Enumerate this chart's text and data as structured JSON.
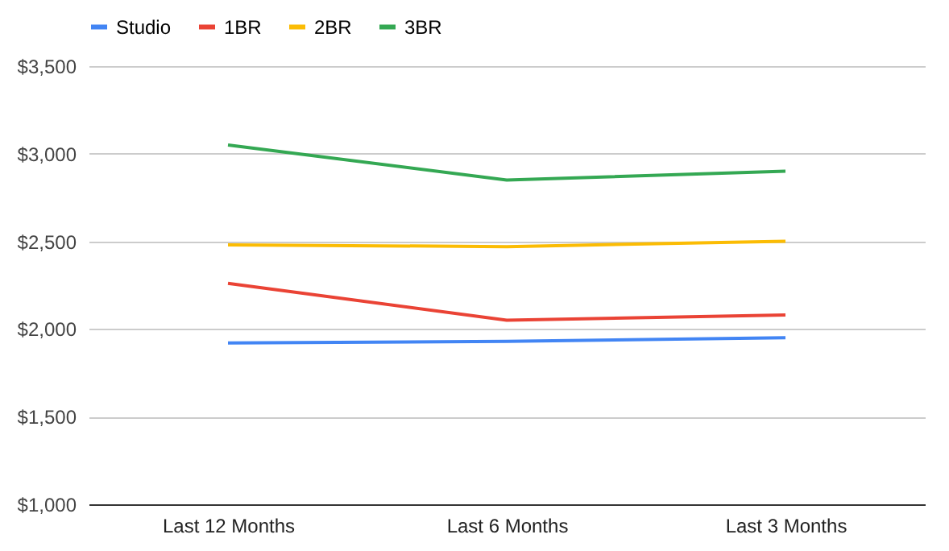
{
  "chart_data": {
    "type": "line",
    "categories": [
      "Last 12 Months",
      "Last 6 Months",
      "Last 3 Months"
    ],
    "series": [
      {
        "name": "Studio",
        "color": "#4285f4",
        "values": [
          1920,
          1930,
          1950
        ]
      },
      {
        "name": "1BR",
        "color": "#ea4335",
        "values": [
          2260,
          2050,
          2080
        ]
      },
      {
        "name": "2BR",
        "color": "#fbbc04",
        "values": [
          2480,
          2470,
          2500
        ]
      },
      {
        "name": "3BR",
        "color": "#34a853",
        "values": [
          3050,
          2850,
          2900
        ]
      }
    ],
    "ylim": [
      1000,
      3500
    ],
    "yticks": [
      {
        "value": 1000,
        "label": "$1,000"
      },
      {
        "value": 1500,
        "label": "$1,500"
      },
      {
        "value": 2000,
        "label": "$2,000"
      },
      {
        "value": 2500,
        "label": "$2,500"
      },
      {
        "value": 3000,
        "label": "$3,000"
      },
      {
        "value": 3500,
        "label": "$3,500"
      }
    ],
    "grid": "y",
    "legend": "top",
    "marker": "none",
    "line_style": "solid"
  }
}
